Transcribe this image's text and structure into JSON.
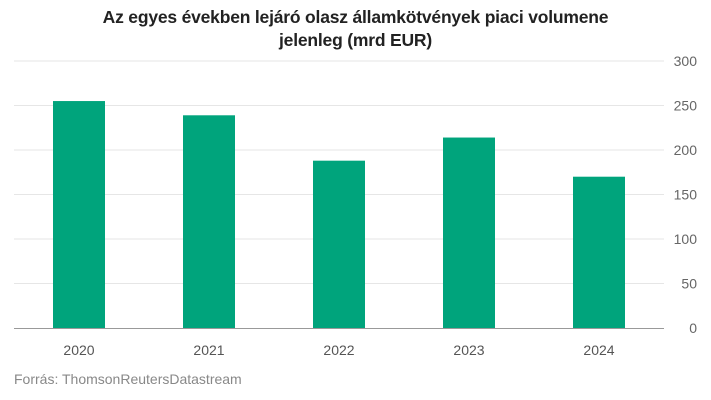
{
  "chart_data": {
    "type": "bar",
    "title_lines": [
      "Az egyes években lejáró olasz államkötvények piaci volumene",
      "jelenleg (mrd EUR)"
    ],
    "categories": [
      "2020",
      "2021",
      "2022",
      "2023",
      "2024"
    ],
    "values": [
      255,
      239,
      188,
      214,
      170
    ],
    "ylim": [
      0,
      300
    ],
    "yticks": [
      "0",
      "50",
      "100",
      "150",
      "200",
      "250",
      "300"
    ],
    "y_axis_side": "right",
    "grid": true,
    "bar_color": "#00a47c",
    "source": "Forrás: ThomsonReutersDatastream"
  }
}
